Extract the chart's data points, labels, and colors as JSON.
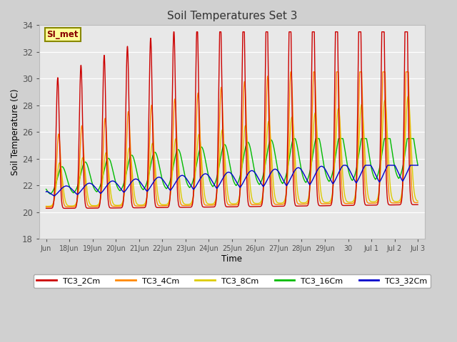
{
  "title": "Soil Temperatures Set 3",
  "xlabel": "Time",
  "ylabel": "Soil Temperature (C)",
  "ylim": [
    18,
    34
  ],
  "series_colors": {
    "TC3_2Cm": "#cc0000",
    "TC3_4Cm": "#ff8800",
    "TC3_8Cm": "#ddcc00",
    "TC3_16Cm": "#00bb00",
    "TC3_32Cm": "#0000cc"
  },
  "legend_label": "SI_met",
  "legend_bg": "#ffff99",
  "legend_border": "#888800",
  "tick_labels": [
    "Jun",
    "18Jun",
    "19Jun",
    "20Jun",
    "21Jun",
    "22Jun",
    "23Jun",
    "24Jun",
    "25Jun",
    "26Jun",
    "27Jun",
    "28Jun",
    "29Jun",
    "30",
    "Jul 1",
    "Jul 2",
    "Jul 3"
  ],
  "tick_positions": [
    0,
    1,
    2,
    3,
    4,
    5,
    6,
    7,
    8,
    9,
    10,
    11,
    12,
    13,
    14,
    15,
    16
  ],
  "yticks": [
    18,
    20,
    22,
    24,
    26,
    28,
    30,
    32,
    34
  ]
}
